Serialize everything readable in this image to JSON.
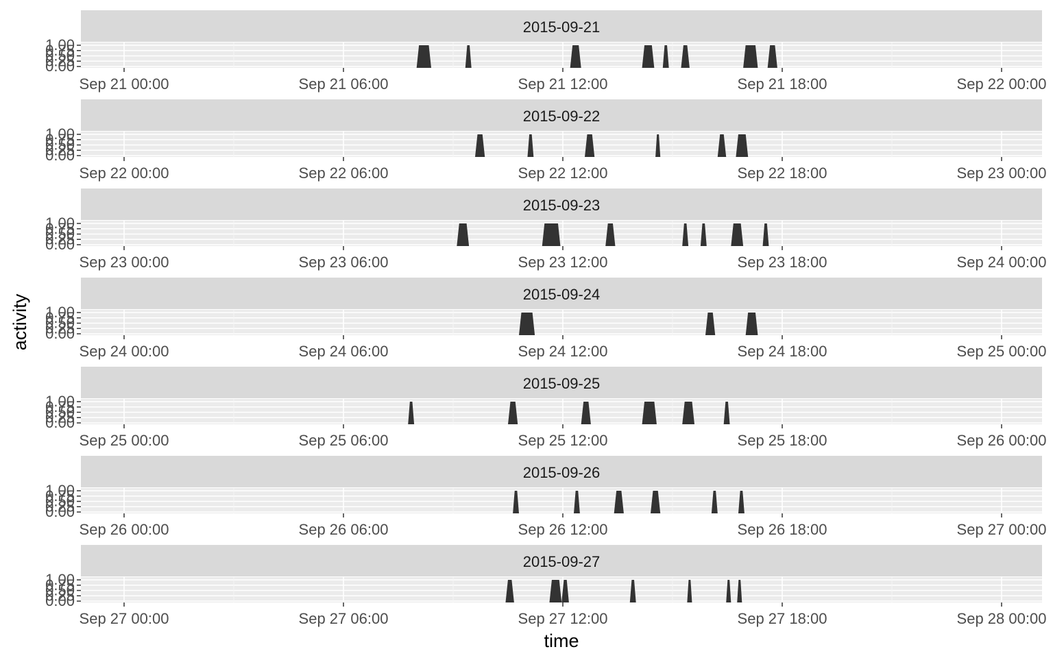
{
  "chart_data": {
    "type": "area",
    "facet_by": "date",
    "xlabel": "time",
    "ylabel": "activity",
    "ylim": [
      0,
      1
    ],
    "y_ticks": [
      "0.00",
      "0.25",
      "0.50",
      "0.75",
      "1.00"
    ],
    "x_tick_hours": [
      0,
      6,
      12,
      18,
      24
    ],
    "panel_background": "#ebebeb",
    "strip_background": "#d9d9d9",
    "fill_color": "#333333",
    "grid": true,
    "legend": "none",
    "panels": [
      {
        "strip": "2015-09-21",
        "x_ticks": [
          "Sep 21 00:00",
          "Sep 21 06:00",
          "Sep 21 12:00",
          "Sep 21 18:00",
          "Sep 22 00:00"
        ],
        "bursts": [
          {
            "start": "08:00",
            "end": "08:24",
            "activity": 1
          },
          {
            "start": "09:20",
            "end": "09:30",
            "activity": 1
          },
          {
            "start": "12:12",
            "end": "12:30",
            "activity": 1
          },
          {
            "start": "14:10",
            "end": "14:30",
            "activity": 1
          },
          {
            "start": "14:44",
            "end": "14:54",
            "activity": 1
          },
          {
            "start": "15:14",
            "end": "15:28",
            "activity": 1
          },
          {
            "start": "16:56",
            "end": "17:20",
            "activity": 1
          },
          {
            "start": "17:36",
            "end": "17:52",
            "activity": 1
          }
        ]
      },
      {
        "strip": "2015-09-22",
        "x_ticks": [
          "Sep 22 00:00",
          "Sep 22 06:00",
          "Sep 22 12:00",
          "Sep 22 18:00",
          "Sep 23 00:00"
        ],
        "bursts": [
          {
            "start": "09:36",
            "end": "09:52",
            "activity": 1
          },
          {
            "start": "11:02",
            "end": "11:12",
            "activity": 1
          },
          {
            "start": "12:36",
            "end": "12:52",
            "activity": 1
          },
          {
            "start": "14:32",
            "end": "14:40",
            "activity": 1
          },
          {
            "start": "16:14",
            "end": "16:28",
            "activity": 1
          },
          {
            "start": "16:44",
            "end": "17:04",
            "activity": 1
          }
        ]
      },
      {
        "strip": "2015-09-23",
        "x_ticks": [
          "Sep 23 00:00",
          "Sep 23 06:00",
          "Sep 23 12:00",
          "Sep 23 18:00",
          "Sep 24 00:00"
        ],
        "bursts": [
          {
            "start": "09:06",
            "end": "09:26",
            "activity": 1
          },
          {
            "start": "11:26",
            "end": "11:56",
            "activity": 1
          },
          {
            "start": "13:10",
            "end": "13:26",
            "activity": 1
          },
          {
            "start": "15:16",
            "end": "15:26",
            "activity": 1
          },
          {
            "start": "15:46",
            "end": "15:56",
            "activity": 1
          },
          {
            "start": "16:36",
            "end": "16:56",
            "activity": 1
          },
          {
            "start": "17:28",
            "end": "17:38",
            "activity": 1
          }
        ]
      },
      {
        "strip": "2015-09-24",
        "x_ticks": [
          "Sep 24 00:00",
          "Sep 24 06:00",
          "Sep 24 12:00",
          "Sep 24 18:00",
          "Sep 25 00:00"
        ],
        "bursts": [
          {
            "start": "10:48",
            "end": "11:14",
            "activity": 1
          },
          {
            "start": "15:54",
            "end": "16:10",
            "activity": 1
          },
          {
            "start": "17:00",
            "end": "17:20",
            "activity": 1
          }
        ]
      },
      {
        "strip": "2015-09-25",
        "x_ticks": [
          "Sep 25 00:00",
          "Sep 25 06:00",
          "Sep 25 12:00",
          "Sep 25 18:00",
          "Sep 26 00:00"
        ],
        "bursts": [
          {
            "start": "07:46",
            "end": "07:56",
            "activity": 1
          },
          {
            "start": "10:30",
            "end": "10:46",
            "activity": 1
          },
          {
            "start": "12:30",
            "end": "12:46",
            "activity": 1
          },
          {
            "start": "14:10",
            "end": "14:34",
            "activity": 1
          },
          {
            "start": "15:16",
            "end": "15:36",
            "activity": 1
          },
          {
            "start": "16:24",
            "end": "16:34",
            "activity": 1
          }
        ]
      },
      {
        "strip": "2015-09-26",
        "x_ticks": [
          "Sep 26 00:00",
          "Sep 26 06:00",
          "Sep 26 12:00",
          "Sep 26 18:00",
          "Sep 27 00:00"
        ],
        "bursts": [
          {
            "start": "10:38",
            "end": "10:48",
            "activity": 1
          },
          {
            "start": "12:18",
            "end": "12:28",
            "activity": 1
          },
          {
            "start": "13:24",
            "end": "13:40",
            "activity": 1
          },
          {
            "start": "14:24",
            "end": "14:40",
            "activity": 1
          },
          {
            "start": "16:04",
            "end": "16:14",
            "activity": 1
          },
          {
            "start": "16:48",
            "end": "16:58",
            "activity": 1
          }
        ]
      },
      {
        "strip": "2015-09-27",
        "x_ticks": [
          "Sep 27 00:00",
          "Sep 27 06:00",
          "Sep 27 12:00",
          "Sep 27 18:00",
          "Sep 28 00:00"
        ],
        "bursts": [
          {
            "start": "10:26",
            "end": "10:40",
            "activity": 1
          },
          {
            "start": "11:38",
            "end": "11:58",
            "activity": 1
          },
          {
            "start": "11:58",
            "end": "12:10",
            "activity": 1
          },
          {
            "start": "13:50",
            "end": "14:00",
            "activity": 1
          },
          {
            "start": "15:24",
            "end": "15:32",
            "activity": 1
          },
          {
            "start": "16:28",
            "end": "16:36",
            "activity": 1
          },
          {
            "start": "16:46",
            "end": "16:54",
            "activity": 1
          }
        ]
      }
    ]
  }
}
